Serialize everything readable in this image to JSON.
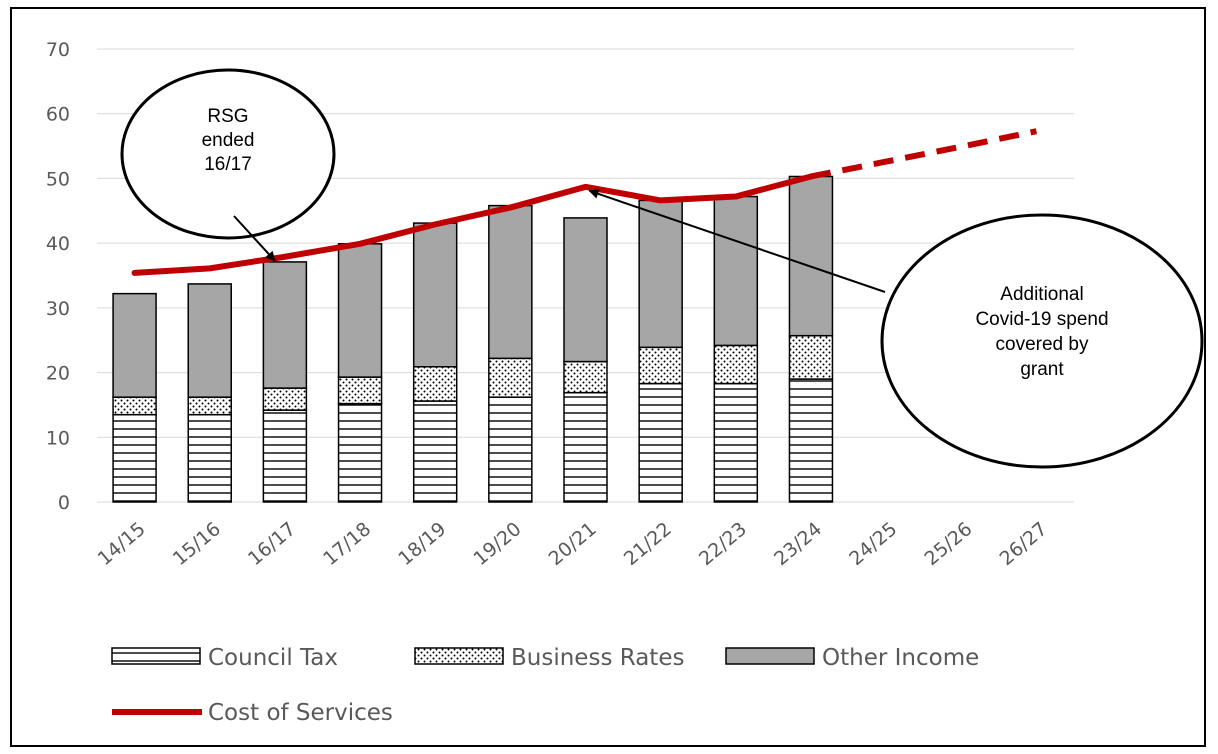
{
  "chart_data": {
    "type": "bar",
    "stacked": true,
    "categories": [
      "14/15",
      "15/16",
      "16/17",
      "17/18",
      "18/19",
      "19/20",
      "20/21",
      "21/22",
      "22/23",
      "23/24",
      "24/25",
      "25/26",
      "26/27"
    ],
    "series": [
      {
        "name": "Council Tax",
        "pattern": "horizontal-lines",
        "values": [
          13.5,
          13.5,
          14.2,
          15.2,
          15.6,
          16.2,
          16.9,
          18.3,
          18.3,
          19.0,
          null,
          null,
          null
        ]
      },
      {
        "name": "Business Rates",
        "pattern": "dots",
        "values": [
          2.7,
          2.7,
          3.4,
          4.1,
          5.3,
          6.0,
          4.8,
          5.6,
          5.9,
          6.7,
          null,
          null,
          null
        ]
      },
      {
        "name": "Other Income",
        "color": "#a6a6a6",
        "values": [
          16.0,
          17.5,
          19.5,
          20.6,
          22.2,
          23.6,
          22.2,
          22.7,
          23.0,
          24.6,
          null,
          null,
          null
        ]
      }
    ],
    "line_series": {
      "name": "Cost of Services",
      "color": "#c00000",
      "values": [
        35.4,
        36.1,
        37.9,
        39.9,
        42.9,
        45.5,
        48.7,
        46.6,
        47.2,
        50.3,
        52.6,
        54.9,
        57.3
      ],
      "dashed_from": "23/24"
    },
    "ylim": [
      0,
      70
    ],
    "yticks": [
      "0",
      "10",
      "20",
      "30",
      "40",
      "50",
      "60",
      "70"
    ],
    "grid": true,
    "legend_position": "bottom",
    "annotations": [
      {
        "lines": [
          "RSG",
          "ended",
          "16/17"
        ],
        "points_to": "16/17"
      },
      {
        "lines": [
          "Additional",
          "Covid-19 spend",
          "covered by",
          "grant"
        ],
        "points_to": "20/21"
      }
    ]
  }
}
